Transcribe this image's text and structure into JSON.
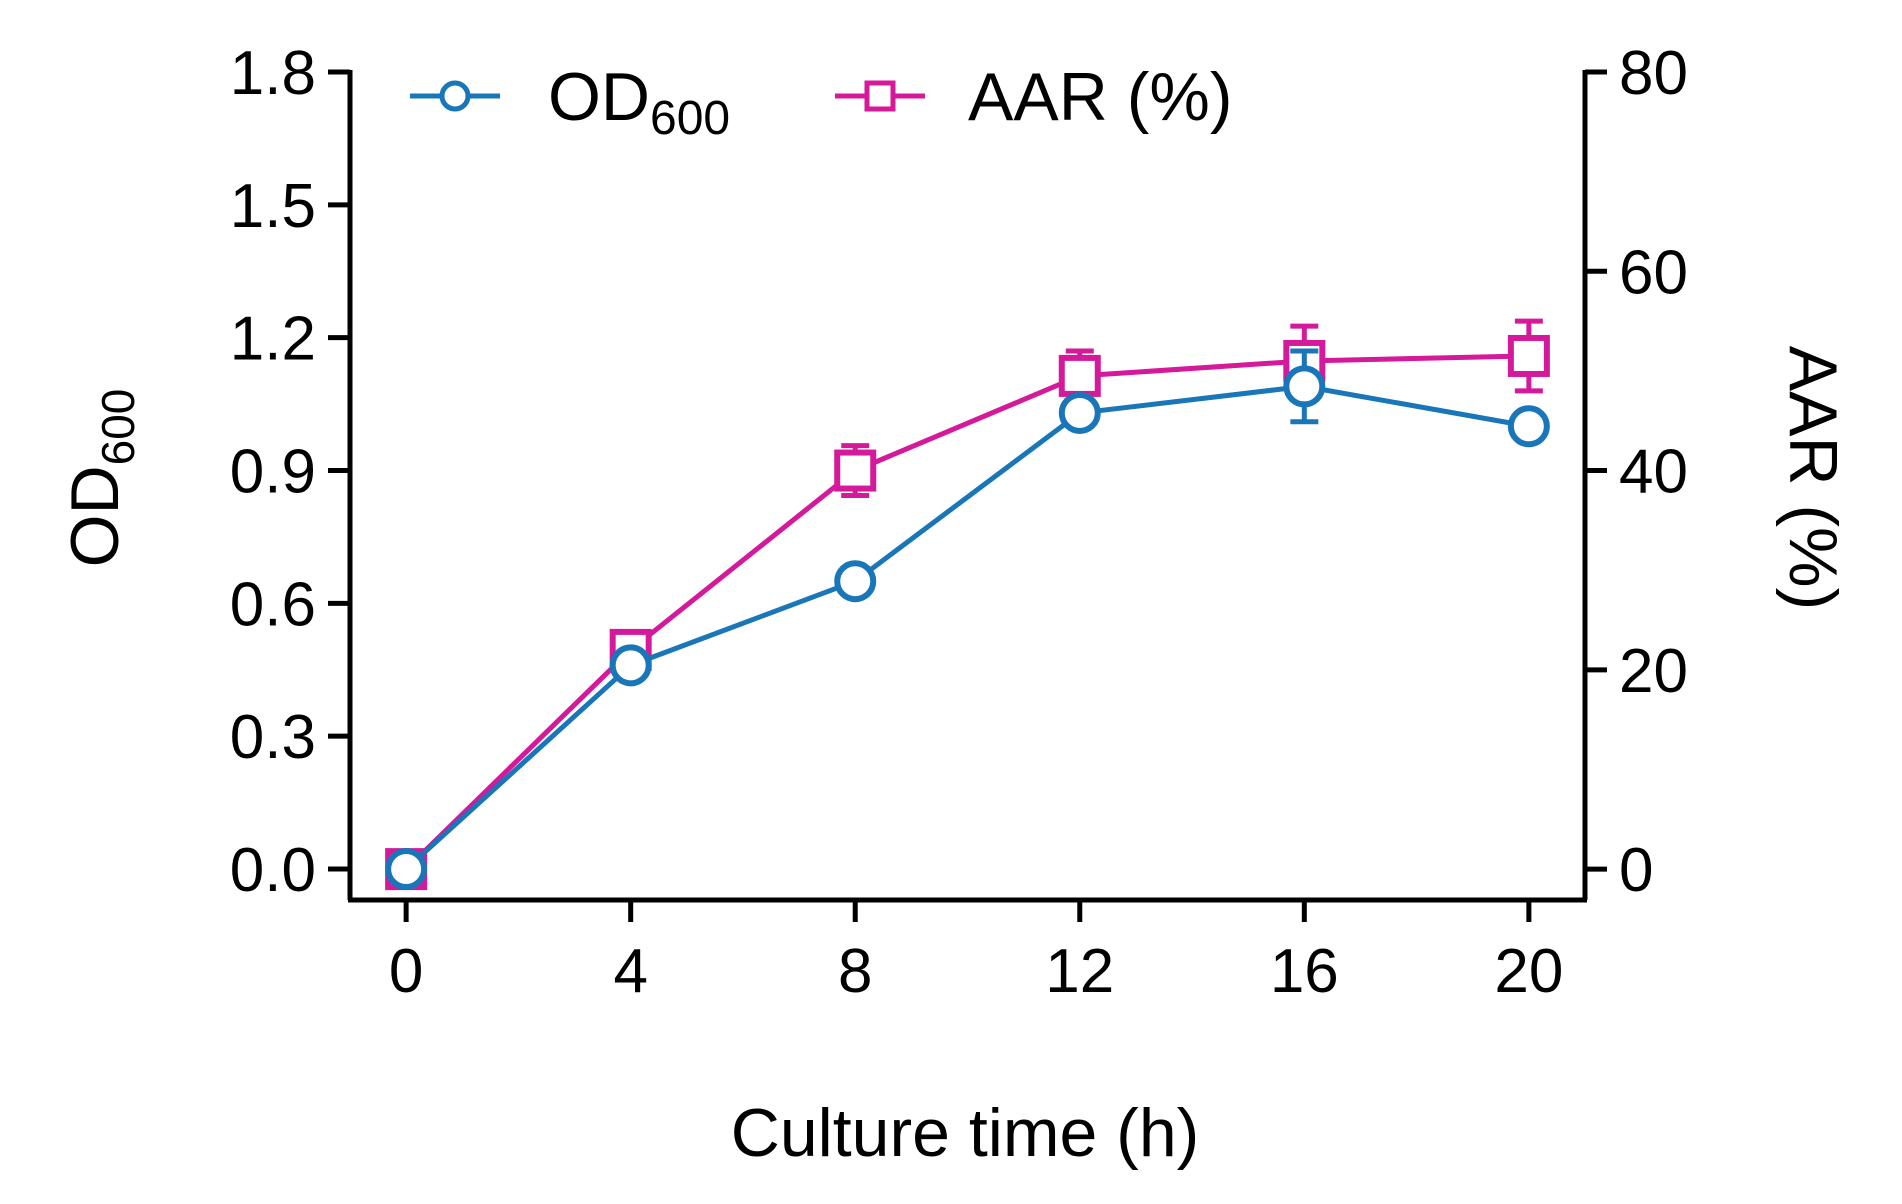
{
  "chart_data": {
    "type": "line",
    "xlabel": "Culture time (h)",
    "ylabel_left": {
      "main": "OD",
      "sub": "600"
    },
    "ylabel_right": "AAR (%)",
    "x": [
      0,
      4,
      8,
      12,
      16,
      20
    ],
    "xlim": [
      -1,
      21
    ],
    "x_ticks": [
      "0",
      "4",
      "8",
      "12",
      "16",
      "20"
    ],
    "ylim_left": [
      -0.07,
      1.8
    ],
    "y_ticks_left": [
      "0.0",
      "0.3",
      "0.6",
      "0.9",
      "1.2",
      "1.5",
      "1.8"
    ],
    "ylim_right": [
      -3.1,
      80
    ],
    "y_ticks_right": [
      "0",
      "20",
      "40",
      "60",
      "80"
    ],
    "legend": {
      "position": "top-left"
    },
    "series": [
      {
        "name": "OD600",
        "label_main": "OD",
        "label_sub": "600",
        "axis": "left",
        "marker": "circle",
        "color": "#1976B8",
        "values": [
          0.0,
          0.46,
          0.65,
          1.03,
          1.09,
          1.0
        ],
        "errors": [
          0.01,
          0.03,
          0.03,
          0.02,
          0.08,
          0.02
        ]
      },
      {
        "name": "AAR (%)",
        "axis": "right",
        "marker": "square",
        "color": "#D4199A",
        "values": [
          0,
          22,
          40,
          49.5,
          51,
          51.5
        ],
        "errors": [
          0.5,
          1.5,
          2.5,
          2.5,
          3.5,
          3.5
        ]
      }
    ]
  }
}
